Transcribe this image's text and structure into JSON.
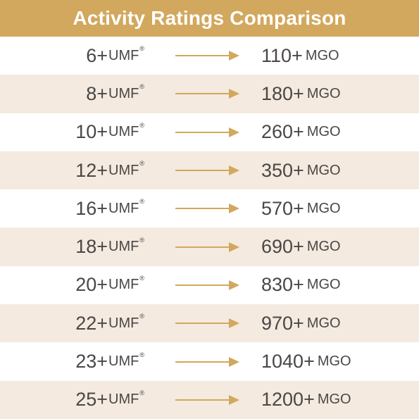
{
  "header": {
    "title": "Activity Ratings Comparison"
  },
  "colors": {
    "header_bg": "#D2A85E",
    "row_alt_bg": "#F4EADF",
    "arrow": "#D2A85E",
    "text": "#4A4746"
  },
  "umf_unit": "UMF",
  "reg_mark": "®",
  "mgo_unit": "MGO",
  "rows": [
    {
      "umf": "6+",
      "mgo": "110+"
    },
    {
      "umf": "8+",
      "mgo": "180+"
    },
    {
      "umf": "10+",
      "mgo": "260+"
    },
    {
      "umf": "12+",
      "mgo": "350+"
    },
    {
      "umf": "16+",
      "mgo": "570+"
    },
    {
      "umf": "18+",
      "mgo": "690+"
    },
    {
      "umf": "20+",
      "mgo": "830+"
    },
    {
      "umf": "22+",
      "mgo": "970+"
    },
    {
      "umf": "23+",
      "mgo": "1040+"
    },
    {
      "umf": "25+",
      "mgo": "1200+"
    }
  ]
}
